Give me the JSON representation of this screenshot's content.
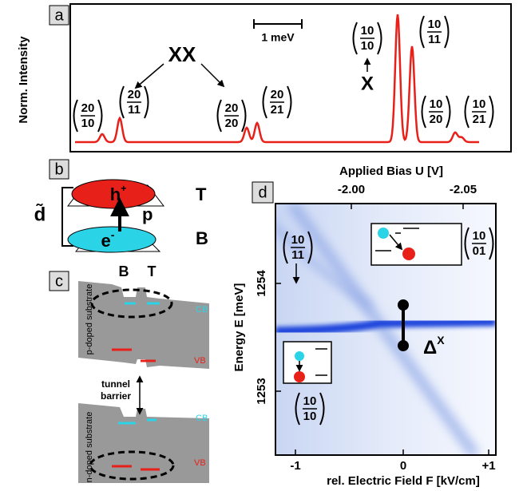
{
  "panels": {
    "a": {
      "label": "a",
      "y_axis_label": "Norm. Intensity",
      "scale_bar": "1 meV",
      "xx_label": "XX",
      "x_label": "X",
      "states": [
        {
          "top": "20",
          "bottom": "10"
        },
        {
          "top": "20",
          "bottom": "11"
        },
        {
          "top": "20",
          "bottom": "20"
        },
        {
          "top": "20",
          "bottom": "21"
        },
        {
          "top": "10",
          "bottom": "10"
        },
        {
          "top": "10",
          "bottom": "11"
        },
        {
          "top": "10",
          "bottom": "20"
        },
        {
          "top": "10",
          "bottom": "21"
        }
      ]
    },
    "b": {
      "label": "b",
      "hole": "h",
      "hole_charge": "+",
      "electron": "e",
      "electron_charge": "-",
      "dipole": "p",
      "top_dot": "T",
      "bottom_dot": "B",
      "distance": "d̃"
    },
    "c": {
      "label": "c",
      "dot_b": "B",
      "dot_t": "T",
      "p_substrate": "p-doped substrate",
      "n_substrate": "n-doped substrate",
      "cb_top": "CB",
      "vb_top": "VB",
      "barrier": [
        "tunnel",
        "barrier"
      ],
      "cb_bottom": "CB",
      "vb_bottom": "VB"
    },
    "d": {
      "label": "d",
      "top_axis_label": "Applied Bias U [V]",
      "top_ticks": [
        "-2.00",
        "-2.05"
      ],
      "y_axis_label": "Energy E [meV]",
      "y_ticks": [
        "1254",
        "1253"
      ],
      "x_axis_label": "rel. Electric Field F [kV/cm]",
      "x_ticks": [
        "-1",
        "0",
        "+1"
      ],
      "splitting": "Δ",
      "splitting_sup": "X",
      "states": [
        {
          "top": "10",
          "bottom": "11"
        },
        {
          "top": "10",
          "bottom": "01"
        },
        {
          "top": "10",
          "bottom": "10"
        }
      ]
    }
  }
}
